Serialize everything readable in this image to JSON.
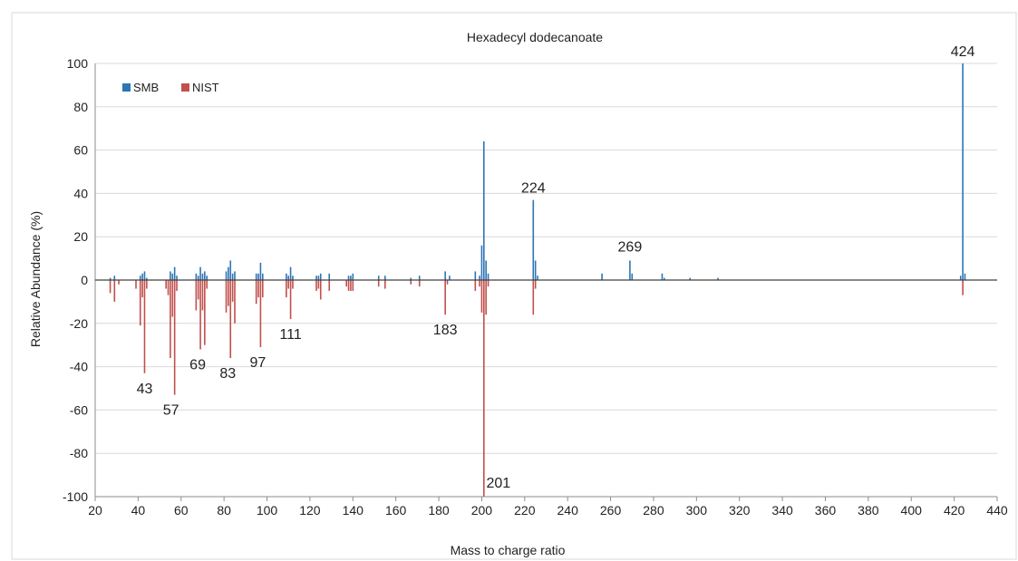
{
  "chart_data": {
    "type": "bar",
    "title": "Hexadecyl dodecanoate",
    "xlabel": "Mass to charge ratio",
    "ylabel": "Relative Abundance (%)",
    "xlim": [
      20,
      440
    ],
    "ylim": [
      -100,
      100
    ],
    "xticks": [
      20,
      40,
      60,
      80,
      100,
      120,
      140,
      160,
      180,
      200,
      220,
      240,
      260,
      280,
      300,
      320,
      340,
      360,
      380,
      400,
      420,
      440
    ],
    "yticks": [
      100,
      80,
      60,
      40,
      20,
      0,
      -20,
      -40,
      -60,
      -80,
      -100
    ],
    "grid": "horizontal",
    "legend_position": "top-left",
    "series": [
      {
        "name": "SMB",
        "color": "#2e75b6",
        "points": [
          [
            27,
            1
          ],
          [
            29,
            2
          ],
          [
            41,
            2
          ],
          [
            42,
            3
          ],
          [
            43,
            4
          ],
          [
            44,
            1
          ],
          [
            55,
            4
          ],
          [
            56,
            3
          ],
          [
            57,
            6
          ],
          [
            58,
            2
          ],
          [
            67,
            3
          ],
          [
            68,
            2
          ],
          [
            69,
            6
          ],
          [
            70,
            3
          ],
          [
            71,
            4
          ],
          [
            72,
            2
          ],
          [
            81,
            4
          ],
          [
            82,
            6
          ],
          [
            83,
            9
          ],
          [
            84,
            3
          ],
          [
            85,
            4
          ],
          [
            95,
            3
          ],
          [
            96,
            3
          ],
          [
            97,
            8
          ],
          [
            98,
            3
          ],
          [
            109,
            3
          ],
          [
            110,
            2
          ],
          [
            111,
            6
          ],
          [
            112,
            2
          ],
          [
            123,
            2
          ],
          [
            124,
            2
          ],
          [
            125,
            3
          ],
          [
            129,
            3
          ],
          [
            138,
            2
          ],
          [
            139,
            2
          ],
          [
            140,
            3
          ],
          [
            152,
            2
          ],
          [
            155,
            2
          ],
          [
            167,
            1
          ],
          [
            171,
            2
          ],
          [
            183,
            4
          ],
          [
            185,
            2
          ],
          [
            197,
            4
          ],
          [
            199,
            2
          ],
          [
            200,
            16
          ],
          [
            201,
            64
          ],
          [
            202,
            9
          ],
          [
            203,
            3
          ],
          [
            224,
            37
          ],
          [
            225,
            9
          ],
          [
            226,
            2
          ],
          [
            256,
            3
          ],
          [
            269,
            9
          ],
          [
            270,
            3
          ],
          [
            284,
            3
          ],
          [
            285,
            1
          ],
          [
            297,
            1
          ],
          [
            310,
            1
          ],
          [
            423,
            2
          ],
          [
            424,
            100
          ],
          [
            425,
            3
          ]
        ]
      },
      {
        "name": "NIST",
        "color": "#c0504d",
        "points": [
          [
            27,
            -6
          ],
          [
            29,
            -10
          ],
          [
            31,
            -2
          ],
          [
            39,
            -4
          ],
          [
            41,
            -21
          ],
          [
            42,
            -8
          ],
          [
            43,
            -43
          ],
          [
            44,
            -4
          ],
          [
            53,
            -4
          ],
          [
            54,
            -7
          ],
          [
            55,
            -36
          ],
          [
            56,
            -17
          ],
          [
            57,
            -53
          ],
          [
            58,
            -5
          ],
          [
            67,
            -14
          ],
          [
            68,
            -9
          ],
          [
            69,
            -32
          ],
          [
            70,
            -14
          ],
          [
            71,
            -30
          ],
          [
            72,
            -4
          ],
          [
            81,
            -15
          ],
          [
            82,
            -12
          ],
          [
            83,
            -36
          ],
          [
            84,
            -10
          ],
          [
            85,
            -20
          ],
          [
            95,
            -11
          ],
          [
            96,
            -8
          ],
          [
            97,
            -31
          ],
          [
            98,
            -8
          ],
          [
            109,
            -8
          ],
          [
            110,
            -4
          ],
          [
            111,
            -18
          ],
          [
            112,
            -4
          ],
          [
            123,
            -5
          ],
          [
            124,
            -4
          ],
          [
            125,
            -9
          ],
          [
            129,
            -5
          ],
          [
            137,
            -3
          ],
          [
            138,
            -5
          ],
          [
            139,
            -5
          ],
          [
            140,
            -5
          ],
          [
            152,
            -3
          ],
          [
            155,
            -4
          ],
          [
            167,
            -2
          ],
          [
            171,
            -3
          ],
          [
            183,
            -16
          ],
          [
            184,
            -2
          ],
          [
            197,
            -5
          ],
          [
            199,
            -3
          ],
          [
            200,
            -15
          ],
          [
            201,
            -100
          ],
          [
            202,
            -16
          ],
          [
            203,
            -3
          ],
          [
            224,
            -16
          ],
          [
            225,
            -4
          ],
          [
            424,
            -7
          ]
        ]
      }
    ],
    "annotations": [
      {
        "label": "424",
        "x": 424,
        "y": 100
      },
      {
        "label": "224",
        "x": 224,
        "y": 37
      },
      {
        "label": "269",
        "x": 269,
        "y": 9
      },
      {
        "label": "111",
        "x": 111,
        "y": -18
      },
      {
        "label": "183",
        "x": 183,
        "y": -16
      },
      {
        "label": "97",
        "x": 97,
        "y": -31
      },
      {
        "label": "69",
        "x": 69,
        "y": -32
      },
      {
        "label": "83",
        "x": 83,
        "y": -36
      },
      {
        "label": "43",
        "x": 43,
        "y": -43
      },
      {
        "label": "57",
        "x": 57,
        "y": -53
      },
      {
        "label": "201",
        "x": 201,
        "y": -100
      }
    ]
  }
}
